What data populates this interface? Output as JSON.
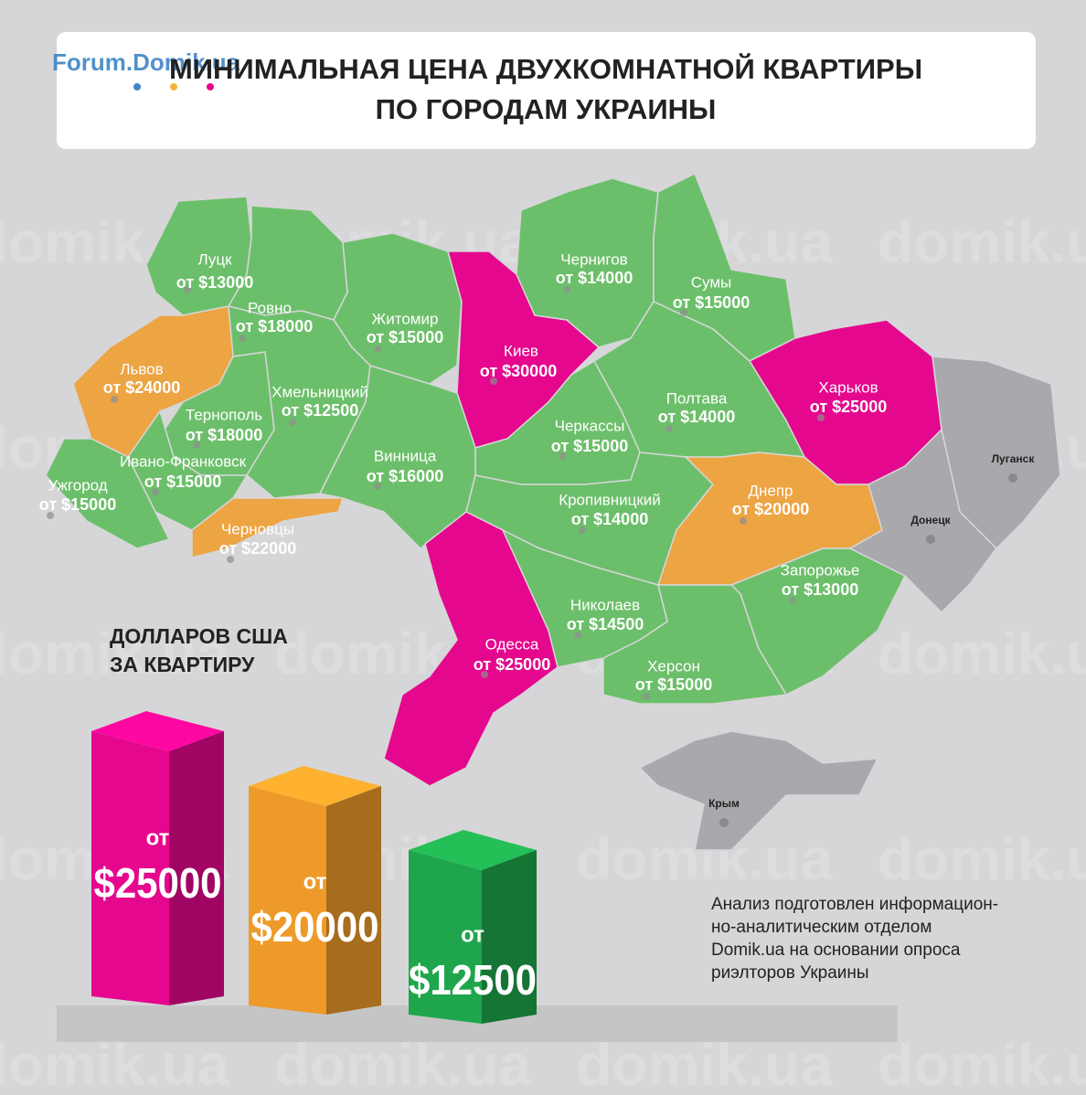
{
  "logo": "Forum.Domik.ua",
  "header": {
    "title_lines": [
      "МИНИМАЛЬНАЯ ЦЕНА ДВУХКОМНАТНОЙ КВАРТИРЫ",
      "ПО ГОРОДАМ УКРАИНЫ"
    ]
  },
  "watermark": "domik.ua",
  "regions": [
    {
      "name": "Луцк",
      "price": "от $13000",
      "color": "#6cbf6a"
    },
    {
      "name": "Ровно",
      "price": "от $18000",
      "color": "#6cbf6a"
    },
    {
      "name": "Житомир",
      "price": "от $15000",
      "color": "#6cbf6a"
    },
    {
      "name": "Киев",
      "price": "от $30000",
      "color": "#e5078d"
    },
    {
      "name": "Чернигов",
      "price": "от $14000",
      "color": "#6cbf6a"
    },
    {
      "name": "Сумы",
      "price": "от $15000",
      "color": "#6cbf6a"
    },
    {
      "name": "Харьков",
      "price": "от $25000",
      "color": "#e5078d"
    },
    {
      "name": "Полтава",
      "price": "от $14000",
      "color": "#6cbf6a"
    },
    {
      "name": "Черкассы",
      "price": "от $15000",
      "color": "#6cbf6a"
    },
    {
      "name": "Львов",
      "price": "от $24000",
      "color": "#eda443"
    },
    {
      "name": "Тернополь",
      "price": "от $18000",
      "color": "#6cbf6a"
    },
    {
      "name": "Ивано-Франковск",
      "price": "от $15000",
      "color": "#6cbf6a"
    },
    {
      "name": "Ужгород",
      "price": "от $15000",
      "color": "#6cbf6a"
    },
    {
      "name": "Черновцы",
      "price": "от $22000",
      "color": "#eda443"
    },
    {
      "name": "Хмельницкий",
      "price": "от $12500",
      "color": "#6cbf6a"
    },
    {
      "name": "Винница",
      "price": "от $16000",
      "color": "#6cbf6a"
    },
    {
      "name": "Кропивницкий",
      "price": "от $14000",
      "color": "#6cbf6a"
    },
    {
      "name": "Днепр",
      "price": "от $20000",
      "color": "#eda443"
    },
    {
      "name": "Запорожье",
      "price": "от $13000",
      "color": "#6cbf6a"
    },
    {
      "name": "Николаев",
      "price": "от $14500",
      "color": "#6cbf6a"
    },
    {
      "name": "Херсон",
      "price": "от $15000",
      "color": "#6cbf6a"
    },
    {
      "name": "Одесса",
      "price": "от $25000",
      "color": "#e5078d"
    }
  ],
  "gray_regions": [
    {
      "name": "Луганск",
      "color": "#a9a8ac"
    },
    {
      "name": "Донецк",
      "color": "#a9a8ac"
    },
    {
      "name": "Крым",
      "color": "#a9a8ac"
    }
  ],
  "legend": {
    "title_lines": [
      "ДОЛЛАРОВ США",
      "ЗА КВАРТИРУ"
    ],
    "items": [
      {
        "prefix": "от",
        "price": "$25000",
        "color": "#e5078d"
      },
      {
        "prefix": "от",
        "price": "$20000",
        "color": "#ee9a2a"
      },
      {
        "prefix": "от",
        "price": "$12500",
        "color": "#1fa64c"
      }
    ]
  },
  "note_lines": [
    "Анализ подготовлен информацион-",
    "но-аналитическим отделом",
    "Domik.ua на основании опроса",
    "риэлторов Украины"
  ]
}
